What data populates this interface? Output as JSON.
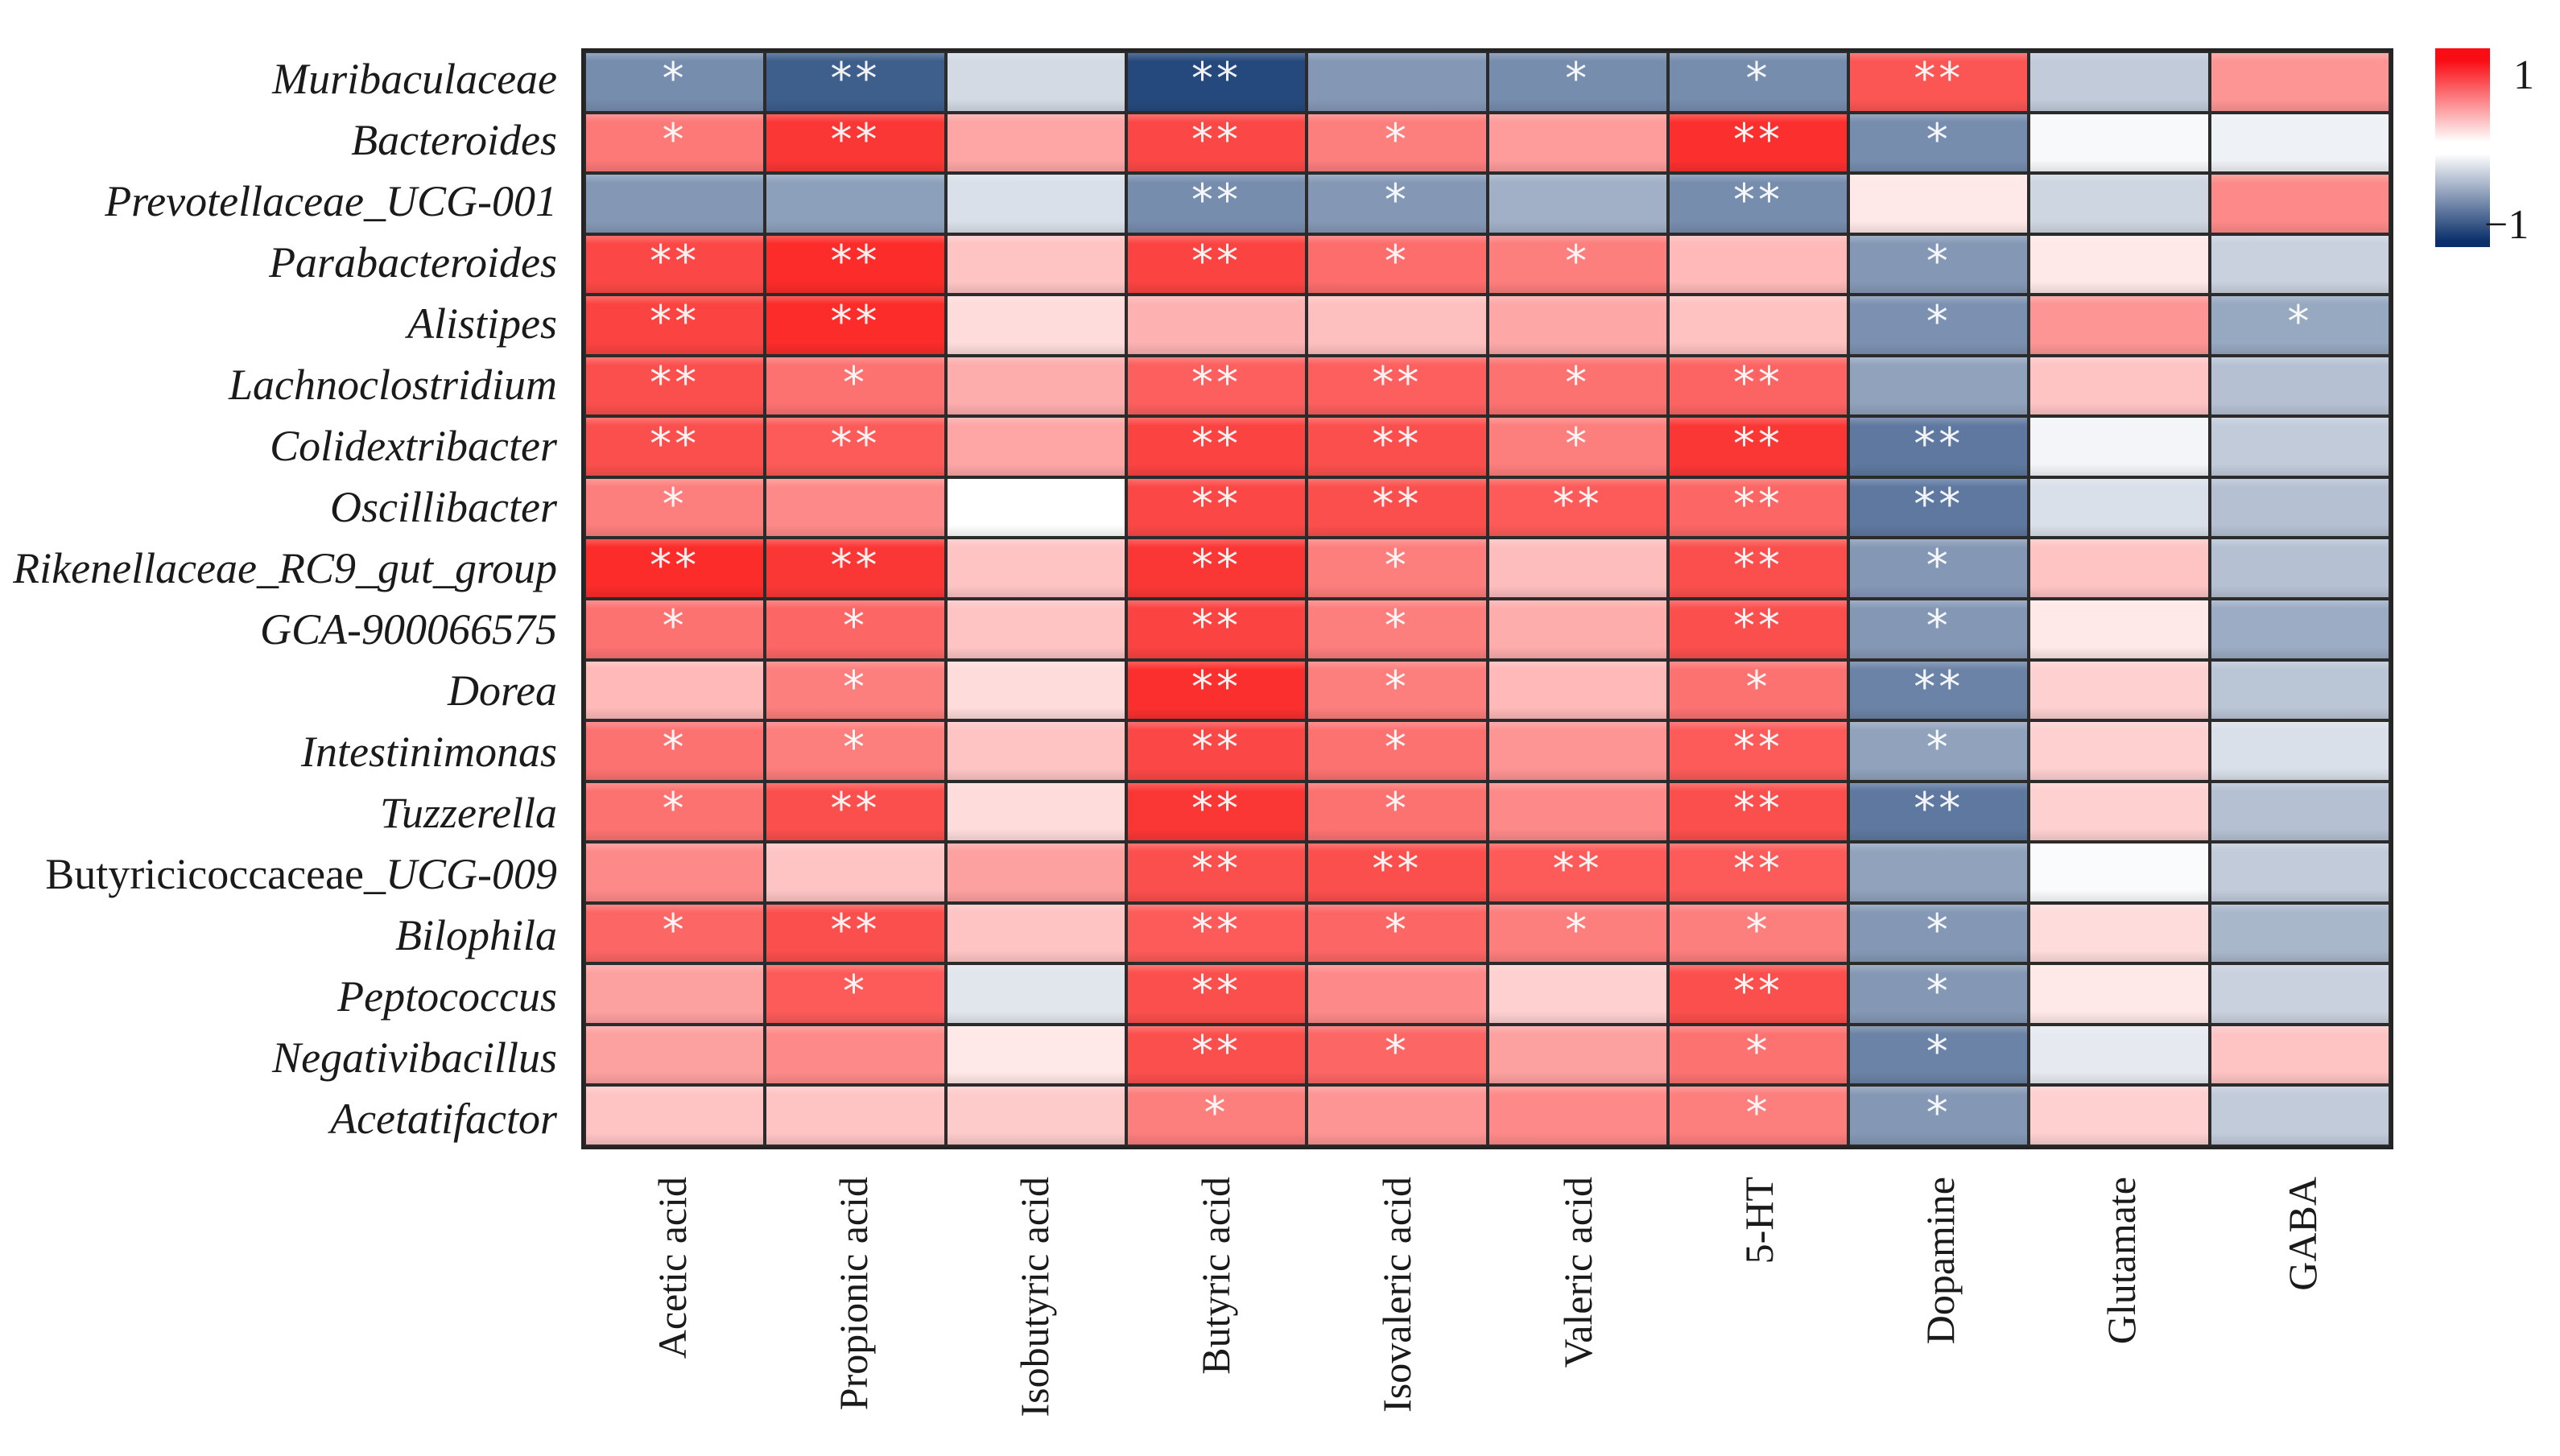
{
  "chart_data": {
    "type": "heatmap",
    "title": "",
    "xlabel": "",
    "ylabel": "",
    "grid_line_color": "#2b2b2b",
    "x_categories": [
      "Acetic acid",
      "Propionic acid",
      "Isobutyric acid",
      "Butyric acid",
      "Isovaleric acid",
      "Valeric acid",
      "5-HT",
      "Dopamine",
      "Glutamate",
      "GABA"
    ],
    "rows": [
      {
        "name_plain": "",
        "name_italic": "Muribaculaceae",
        "values": [
          -0.55,
          -0.78,
          -0.18,
          -0.88,
          -0.5,
          -0.55,
          -0.55,
          0.72,
          -0.25,
          0.45
        ],
        "stars": [
          "*",
          "**",
          "",
          "**",
          "",
          "*",
          "*",
          "**",
          "",
          ""
        ]
      },
      {
        "name_plain": "",
        "name_italic": "Bacteroides",
        "values": [
          0.57,
          0.85,
          0.38,
          0.78,
          0.55,
          0.42,
          0.88,
          -0.55,
          -0.03,
          -0.07
        ],
        "stars": [
          "*",
          "**",
          "",
          "**",
          "*",
          "",
          "**",
          "*",
          "",
          ""
        ]
      },
      {
        "name_plain": "",
        "name_italic": "Prevotellaceae_UCG-001",
        "values": [
          -0.5,
          -0.46,
          -0.15,
          -0.55,
          -0.5,
          -0.38,
          -0.55,
          0.1,
          -0.2,
          0.5
        ],
        "stars": [
          "",
          "",
          "",
          "**",
          "*",
          "",
          "**",
          "",
          "",
          ""
        ]
      },
      {
        "name_plain": "",
        "name_italic": "Parabacteroides",
        "values": [
          0.78,
          0.9,
          0.25,
          0.8,
          0.62,
          0.55,
          0.3,
          -0.5,
          0.1,
          -0.22
        ],
        "stars": [
          "**",
          "**",
          "",
          "**",
          "*",
          "*",
          "",
          "*",
          "",
          ""
        ]
      },
      {
        "name_plain": "",
        "name_italic": "Alistipes",
        "values": [
          0.8,
          0.9,
          0.15,
          0.33,
          0.27,
          0.37,
          0.26,
          -0.53,
          0.45,
          -0.42
        ],
        "stars": [
          "**",
          "**",
          "",
          "",
          "",
          "",
          "",
          "*",
          "",
          "*"
        ]
      },
      {
        "name_plain": "",
        "name_italic": "Lachnoclostridium",
        "values": [
          0.75,
          0.6,
          0.35,
          0.68,
          0.68,
          0.6,
          0.66,
          -0.45,
          0.25,
          -0.3
        ],
        "stars": [
          "**",
          "*",
          "",
          "**",
          "**",
          "*",
          "**",
          "",
          "",
          ""
        ]
      },
      {
        "name_plain": "",
        "name_italic": "Colidextribacter",
        "values": [
          0.75,
          0.7,
          0.38,
          0.8,
          0.75,
          0.55,
          0.85,
          -0.65,
          -0.05,
          -0.25
        ],
        "stars": [
          "**",
          "**",
          "",
          "**",
          "**",
          "*",
          "**",
          "**",
          "",
          ""
        ]
      },
      {
        "name_plain": "",
        "name_italic": "Oscillibacter",
        "values": [
          0.55,
          0.5,
          0.0,
          0.78,
          0.75,
          0.7,
          0.65,
          -0.65,
          -0.15,
          -0.3
        ],
        "stars": [
          "*",
          "",
          "",
          "**",
          "**",
          "**",
          "**",
          "**",
          "",
          ""
        ]
      },
      {
        "name_plain": "",
        "name_italic": "Rikenellaceae_RC9_gut_group",
        "values": [
          0.9,
          0.85,
          0.25,
          0.85,
          0.55,
          0.28,
          0.75,
          -0.5,
          0.25,
          -0.3
        ],
        "stars": [
          "**",
          "**",
          "",
          "**",
          "*",
          "",
          "**",
          "*",
          "",
          ""
        ]
      },
      {
        "name_plain": "",
        "name_italic": "GCA-900066575",
        "values": [
          0.6,
          0.65,
          0.25,
          0.8,
          0.55,
          0.35,
          0.75,
          -0.5,
          0.1,
          -0.4
        ],
        "stars": [
          "*",
          "*",
          "",
          "**",
          "*",
          "",
          "**",
          "*",
          "",
          ""
        ]
      },
      {
        "name_plain": "",
        "name_italic": "Dorea",
        "values": [
          0.3,
          0.55,
          0.15,
          0.88,
          0.55,
          0.3,
          0.6,
          -0.6,
          0.2,
          -0.28
        ],
        "stars": [
          "",
          "*",
          "",
          "**",
          "*",
          "",
          "*",
          "**",
          "",
          ""
        ]
      },
      {
        "name_plain": "",
        "name_italic": "Intestinimonas",
        "values": [
          0.6,
          0.55,
          0.25,
          0.78,
          0.6,
          0.45,
          0.7,
          -0.45,
          0.2,
          -0.15
        ],
        "stars": [
          "*",
          "*",
          "",
          "**",
          "*",
          "",
          "**",
          "*",
          "",
          ""
        ]
      },
      {
        "name_plain": "",
        "name_italic": "Tuzzerella",
        "values": [
          0.6,
          0.75,
          0.15,
          0.85,
          0.6,
          0.5,
          0.75,
          -0.65,
          0.2,
          -0.3
        ],
        "stars": [
          "*",
          "**",
          "",
          "**",
          "*",
          "",
          "**",
          "**",
          "",
          ""
        ]
      },
      {
        "name_plain": "Butyricicoccaceae",
        "name_italic": "_UCG-009",
        "values": [
          0.5,
          0.25,
          0.4,
          0.75,
          0.75,
          0.7,
          0.7,
          -0.45,
          -0.02,
          -0.25
        ],
        "stars": [
          "",
          "",
          "",
          "**",
          "**",
          "**",
          "**",
          "",
          "",
          ""
        ]
      },
      {
        "name_plain": "",
        "name_italic": "Bilophila",
        "values": [
          0.65,
          0.75,
          0.25,
          0.7,
          0.65,
          0.55,
          0.55,
          -0.5,
          0.15,
          -0.35
        ],
        "stars": [
          "*",
          "**",
          "",
          "**",
          "*",
          "*",
          "*",
          "*",
          "",
          ""
        ]
      },
      {
        "name_plain": "",
        "name_italic": "Peptococcus",
        "values": [
          0.4,
          0.7,
          -0.12,
          0.75,
          0.5,
          0.2,
          0.75,
          -0.5,
          0.1,
          -0.22
        ],
        "stars": [
          "",
          "*",
          "",
          "**",
          "",
          "",
          "**",
          "*",
          "",
          ""
        ]
      },
      {
        "name_plain": "",
        "name_italic": "Negativibacillus",
        "values": [
          0.4,
          0.5,
          0.1,
          0.75,
          0.65,
          0.4,
          0.6,
          -0.6,
          -0.1,
          0.25
        ],
        "stars": [
          "",
          "",
          "",
          "**",
          "*",
          "",
          "*",
          "*",
          "",
          ""
        ]
      },
      {
        "name_plain": "",
        "name_italic": "Acetatifactor",
        "values": [
          0.25,
          0.25,
          0.22,
          0.55,
          0.45,
          0.5,
          0.55,
          -0.5,
          0.2,
          -0.25
        ],
        "stars": [
          "",
          "",
          "",
          "*",
          "",
          "",
          "*",
          "*",
          "",
          ""
        ]
      }
    ],
    "value_range": [
      -1,
      1
    ],
    "significance_marks": [
      "*",
      "**"
    ],
    "legend_position": "right",
    "colorbar": {
      "max_label": "1",
      "min_label": "−1",
      "max_color": "#f90c13",
      "mid_color": "#ffffff",
      "min_color": "#0a2f6b"
    }
  }
}
